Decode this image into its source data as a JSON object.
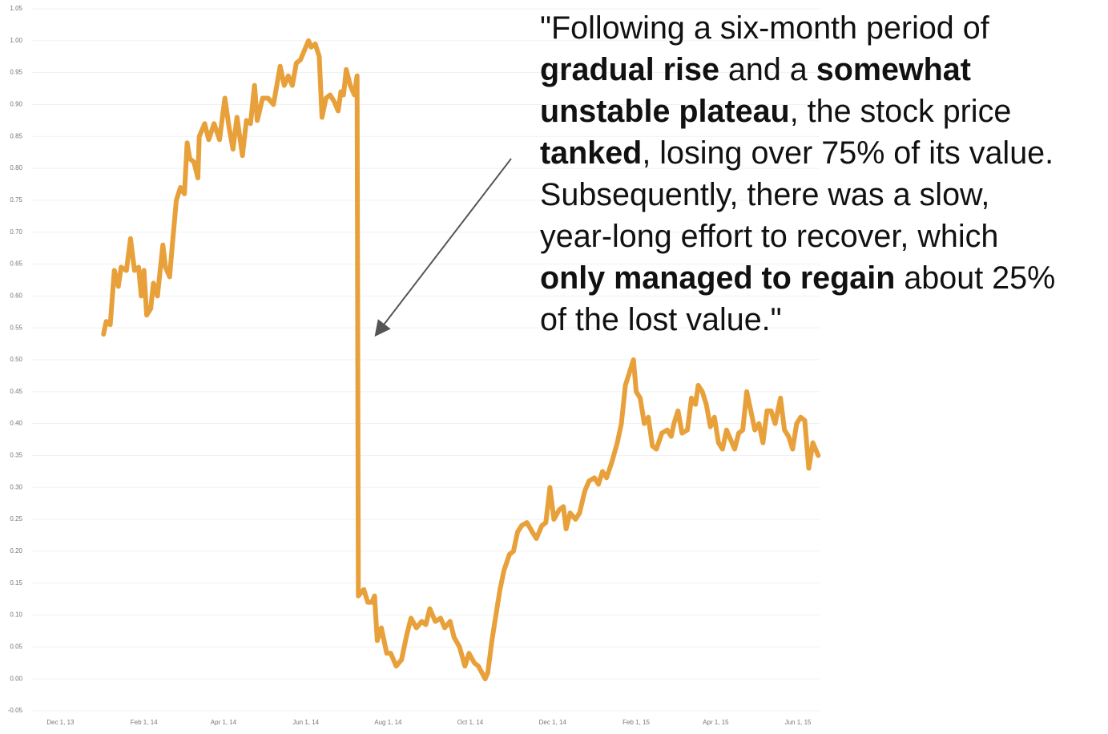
{
  "chart_data": {
    "type": "line",
    "color": "#e8a03a",
    "grid": true,
    "xlim": [
      "2013-11-10",
      "2015-06-17"
    ],
    "xticks": [
      {
        "value": "2013-12-01",
        "label": "Dec 1, 13"
      },
      {
        "value": "2014-02-01",
        "label": "Feb 1, 14"
      },
      {
        "value": "2014-04-01",
        "label": "Apr 1, 14"
      },
      {
        "value": "2014-06-01",
        "label": "Jun 1, 14"
      },
      {
        "value": "2014-08-01",
        "label": "Aug 1, 14"
      },
      {
        "value": "2014-10-01",
        "label": "Oct 1, 14"
      },
      {
        "value": "2014-12-01",
        "label": "Dec 1, 14"
      },
      {
        "value": "2015-02-01",
        "label": "Feb 1, 15"
      },
      {
        "value": "2015-04-01",
        "label": "Apr 1, 15"
      },
      {
        "value": "2015-06-01",
        "label": "Jun 1, 15"
      }
    ],
    "ylim": [
      -0.05,
      1.05
    ],
    "yticks": [
      -0.05,
      {
        "value": 0,
        "label": "0.00"
      },
      0.05,
      {
        "value": 0.1,
        "label": "0.10"
      },
      0.15,
      {
        "value": 0.2,
        "label": "0.20"
      },
      0.25,
      {
        "value": 0.3,
        "label": "0.30"
      },
      0.35,
      {
        "value": 0.4,
        "label": "0.40"
      },
      0.45,
      {
        "value": 0.5,
        "label": "0.50"
      },
      0.55,
      {
        "value": 0.6,
        "label": "0.60"
      },
      0.65,
      {
        "value": 0.7,
        "label": "0.70"
      },
      0.75,
      {
        "value": 0.8,
        "label": "0.80"
      },
      0.85,
      {
        "value": 0.9,
        "label": "0.90"
      },
      0.95,
      {
        "value": 1,
        "label": "1.00"
      },
      1.05
    ],
    "x": [
      "2014-01-02",
      "2014-01-04",
      "2014-01-07",
      "2014-01-10",
      "2014-01-13",
      "2014-01-15",
      "2014-01-19",
      "2014-01-22",
      "2014-01-25",
      "2014-01-28",
      "2014-01-30",
      "2014-02-01",
      "2014-02-03",
      "2014-02-06",
      "2014-02-08",
      "2014-02-11",
      "2014-02-15",
      "2014-02-17",
      "2014-02-20",
      "2014-02-22",
      "2014-02-25",
      "2014-02-28",
      "2014-03-03",
      "2014-03-05",
      "2014-03-07",
      "2014-03-10",
      "2014-03-13",
      "2014-03-14",
      "2014-03-18",
      "2014-03-21",
      "2014-03-25",
      "2014-03-29",
      "2014-04-02",
      "2014-04-05",
      "2014-04-08",
      "2014-04-11",
      "2014-04-15",
      "2014-04-18",
      "2014-04-21",
      "2014-04-24",
      "2014-04-26",
      "2014-04-30",
      "2014-05-04",
      "2014-05-08",
      "2014-05-13",
      "2014-05-16",
      "2014-05-19",
      "2014-05-22",
      "2014-05-25",
      "2014-05-28",
      "2014-05-31",
      "2014-06-03",
      "2014-06-05",
      "2014-06-08",
      "2014-06-11",
      "2014-06-13",
      "2014-06-16",
      "2014-06-19",
      "2014-06-22",
      "2014-06-25",
      "2014-06-27",
      "2014-06-29",
      "2014-07-01",
      "2014-07-04",
      "2014-07-07",
      "2014-07-09",
      "2014-07-10",
      "2014-07-14",
      "2014-07-17",
      "2014-07-20",
      "2014-07-22",
      "2014-07-24",
      "2014-07-27",
      "2014-07-31",
      "2014-08-03",
      "2014-08-07",
      "2014-08-11",
      "2014-08-15",
      "2014-08-18",
      "2014-08-22",
      "2014-08-26",
      "2014-08-29",
      "2014-09-01",
      "2014-09-05",
      "2014-09-09",
      "2014-09-12",
      "2014-09-16",
      "2014-09-19",
      "2014-09-23",
      "2014-09-27",
      "2014-09-30",
      "2014-10-04",
      "2014-10-07",
      "2014-10-12",
      "2014-10-14",
      "2014-10-17",
      "2014-10-20",
      "2014-10-23",
      "2014-10-26",
      "2014-10-30",
      "2014-11-02",
      "2014-11-05",
      "2014-11-08",
      "2014-11-12",
      "2014-11-16",
      "2014-11-19",
      "2014-11-23",
      "2014-11-26",
      "2014-11-29",
      "2014-12-02",
      "2014-12-06",
      "2014-12-09",
      "2014-12-11",
      "2014-12-14",
      "2014-12-18",
      "2014-12-21",
      "2014-12-25",
      "2014-12-28",
      "2015-01-01",
      "2015-01-04",
      "2015-01-07",
      "2015-01-10",
      "2015-01-14",
      "2015-01-18",
      "2015-01-21",
      "2015-01-24",
      "2015-01-27",
      "2015-01-30",
      "2015-02-01",
      "2015-02-04",
      "2015-02-07",
      "2015-02-10",
      "2015-02-13",
      "2015-02-16",
      "2015-02-20",
      "2015-02-24",
      "2015-02-27",
      "2015-03-01",
      "2015-03-04",
      "2015-03-07",
      "2015-03-11",
      "2015-03-14",
      "2015-03-17",
      "2015-03-19",
      "2015-03-22",
      "2015-03-25",
      "2015-03-28",
      "2015-03-31",
      "2015-04-03",
      "2015-04-06",
      "2015-04-09",
      "2015-04-12",
      "2015-04-15",
      "2015-04-18",
      "2015-04-21",
      "2015-04-24",
      "2015-04-27",
      "2015-04-30",
      "2015-05-03",
      "2015-05-06",
      "2015-05-09",
      "2015-05-12",
      "2015-05-15",
      "2015-05-19",
      "2015-05-22",
      "2015-05-25",
      "2015-05-28",
      "2015-05-31",
      "2015-06-03",
      "2015-06-06",
      "2015-06-09",
      "2015-06-12",
      "2015-06-16"
    ],
    "values": [
      0.54,
      0.56,
      0.555,
      0.64,
      0.615,
      0.645,
      0.64,
      0.69,
      0.64,
      0.645,
      0.6,
      0.64,
      0.57,
      0.58,
      0.62,
      0.6,
      0.68,
      0.645,
      0.63,
      0.68,
      0.75,
      0.77,
      0.76,
      0.84,
      0.815,
      0.81,
      0.785,
      0.85,
      0.87,
      0.845,
      0.87,
      0.845,
      0.91,
      0.865,
      0.83,
      0.88,
      0.82,
      0.875,
      0.87,
      0.93,
      0.875,
      0.91,
      0.91,
      0.9,
      0.96,
      0.93,
      0.945,
      0.93,
      0.965,
      0.97,
      0.985,
      1.0,
      0.99,
      0.995,
      0.975,
      0.88,
      0.91,
      0.915,
      0.905,
      0.89,
      0.92,
      0.915,
      0.955,
      0.93,
      0.915,
      0.945,
      0.13,
      0.14,
      0.12,
      0.12,
      0.13,
      0.06,
      0.08,
      0.04,
      0.04,
      0.02,
      0.03,
      0.07,
      0.095,
      0.08,
      0.09,
      0.085,
      0.11,
      0.09,
      0.095,
      0.08,
      0.09,
      0.065,
      0.05,
      0.02,
      0.04,
      0.025,
      0.02,
      0.0,
      0.01,
      0.06,
      0.1,
      0.14,
      0.17,
      0.195,
      0.2,
      0.23,
      0.24,
      0.245,
      0.23,
      0.22,
      0.24,
      0.245,
      0.3,
      0.25,
      0.265,
      0.27,
      0.235,
      0.26,
      0.25,
      0.26,
      0.295,
      0.31,
      0.315,
      0.305,
      0.325,
      0.315,
      0.34,
      0.37,
      0.4,
      0.46,
      0.48,
      0.5,
      0.45,
      0.44,
      0.4,
      0.41,
      0.365,
      0.36,
      0.385,
      0.39,
      0.38,
      0.4,
      0.42,
      0.385,
      0.39,
      0.44,
      0.43,
      0.46,
      0.45,
      0.43,
      0.395,
      0.41,
      0.37,
      0.36,
      0.39,
      0.375,
      0.36,
      0.385,
      0.39,
      0.45,
      0.42,
      0.39,
      0.4,
      0.37,
      0.42,
      0.42,
      0.4,
      0.44,
      0.39,
      0.38,
      0.36,
      0.4,
      0.41,
      0.405,
      0.33,
      0.37,
      0.35
    ],
    "annotation": [
      [
        {
          "text": "\"Following a six-month period of",
          "bold": false
        }
      ],
      [
        {
          "text": "gradual rise",
          "bold": true
        },
        {
          "text": " and a ",
          "bold": false
        },
        {
          "text": "somewhat",
          "bold": true
        }
      ],
      [
        {
          "text": "unstable plateau",
          "bold": true
        },
        {
          "text": ", the stock price",
          "bold": false
        }
      ],
      [
        {
          "text": "tanked",
          "bold": true
        },
        {
          "text": ", losing over 75% of its value.",
          "bold": false
        }
      ],
      [
        {
          "text": "Subsequently, there was a slow,",
          "bold": false
        }
      ],
      [
        {
          "text": "year-long effort to recover, which",
          "bold": false
        }
      ],
      [
        {
          "text": "only managed to regain",
          "bold": true
        },
        {
          "text": " about 25%",
          "bold": false
        }
      ],
      [
        {
          "text": "of the lost value.\"",
          "bold": false
        }
      ]
    ]
  }
}
